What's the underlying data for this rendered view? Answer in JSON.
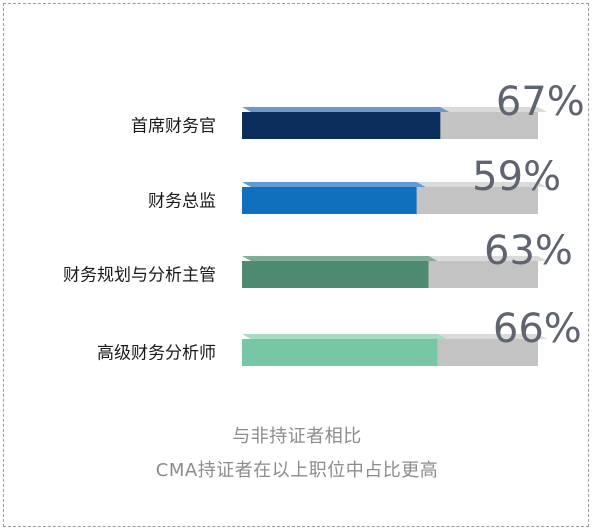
{
  "chart_data": {
    "type": "bar",
    "orientation": "horizontal",
    "categories": [
      "首席财务官",
      "财务总监",
      "财务规划与分析主管",
      "高级财务分析师"
    ],
    "values": [
      67,
      59,
      63,
      66
    ],
    "value_labels": [
      "67%",
      "59%",
      "63%",
      "66%"
    ],
    "xlim": [
      0,
      100
    ],
    "unit": "%",
    "colors": {
      "bars": [
        "#0b2d5c",
        "#1070bd",
        "#4d8a6f",
        "#78c7a4"
      ],
      "bar_tops": [
        "#6f97cc",
        "#5e9bd8",
        "#7fae96",
        "#a7dcc2"
      ],
      "track": "#c3c3c3",
      "track_top": "#dadada",
      "label": "#5e6470"
    },
    "grid": false,
    "legend": "none"
  },
  "caption": {
    "line1": "与非持证者相比",
    "line2": "CMA持证者在以上职位中占比更高"
  }
}
